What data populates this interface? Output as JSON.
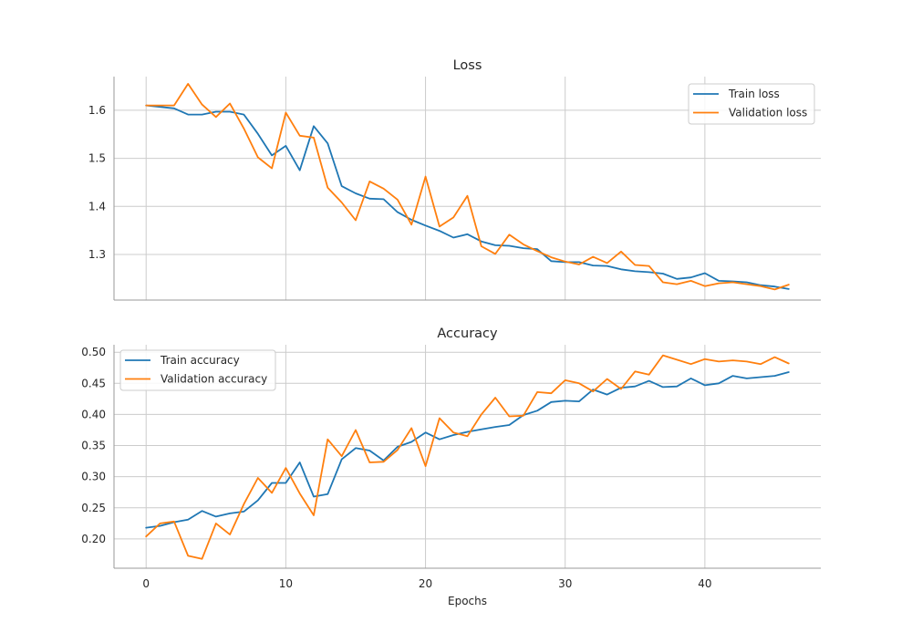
{
  "chart_data": [
    {
      "type": "line",
      "title": "Loss",
      "xlabel": "",
      "ylabel": "",
      "xlim": [
        -2.3,
        48.3
      ],
      "ylim": [
        1.205,
        1.67
      ],
      "xticks": [
        0,
        10,
        20,
        30,
        40
      ],
      "yticks": [
        1.3,
        1.4,
        1.5,
        1.6
      ],
      "ytick_labels": [
        "1.3",
        "1.4",
        "1.5",
        "1.6"
      ],
      "xtick_labels": [],
      "grid": true,
      "legend_position": "upper right",
      "x": [
        0,
        1,
        2,
        3,
        4,
        5,
        6,
        7,
        8,
        9,
        10,
        11,
        12,
        13,
        14,
        15,
        16,
        17,
        18,
        19,
        20,
        21,
        22,
        23,
        24,
        25,
        26,
        27,
        28,
        29,
        30,
        31,
        32,
        33,
        34,
        35,
        36,
        37,
        38,
        39,
        40,
        41,
        42,
        43,
        44,
        45,
        46
      ],
      "series": [
        {
          "name": "Train loss",
          "color": "#1f77b4",
          "values": [
            1.61,
            1.607,
            1.604,
            1.591,
            1.591,
            1.597,
            1.597,
            1.591,
            1.551,
            1.506,
            1.526,
            1.475,
            1.567,
            1.531,
            1.442,
            1.427,
            1.416,
            1.415,
            1.388,
            1.372,
            1.36,
            1.349,
            1.335,
            1.342,
            1.327,
            1.319,
            1.318,
            1.313,
            1.311,
            1.286,
            1.284,
            1.284,
            1.277,
            1.276,
            1.269,
            1.265,
            1.263,
            1.26,
            1.249,
            1.252,
            1.261,
            1.245,
            1.244,
            1.242,
            1.236,
            1.233,
            1.228
          ]
        },
        {
          "name": "Validation loss",
          "color": "#ff7f0e",
          "values": [
            1.61,
            1.61,
            1.61,
            1.655,
            1.612,
            1.586,
            1.614,
            1.562,
            1.502,
            1.479,
            1.595,
            1.547,
            1.543,
            1.439,
            1.408,
            1.371,
            1.452,
            1.437,
            1.414,
            1.362,
            1.462,
            1.358,
            1.377,
            1.422,
            1.317,
            1.301,
            1.341,
            1.321,
            1.307,
            1.294,
            1.285,
            1.279,
            1.295,
            1.282,
            1.306,
            1.278,
            1.276,
            1.242,
            1.238,
            1.245,
            1.234,
            1.24,
            1.242,
            1.238,
            1.234,
            1.227,
            1.237
          ]
        }
      ]
    },
    {
      "type": "line",
      "title": "Accuracy",
      "xlabel": "Epochs",
      "ylabel": "",
      "xlim": [
        -2.3,
        48.3
      ],
      "ylim": [
        0.153,
        0.512
      ],
      "xticks": [
        0,
        10,
        20,
        30,
        40
      ],
      "xtick_labels": [
        "0",
        "10",
        "20",
        "30",
        "40"
      ],
      "yticks": [
        0.2,
        0.25,
        0.3,
        0.35,
        0.4,
        0.45,
        0.5
      ],
      "ytick_labels": [
        "0.20",
        "0.25",
        "0.30",
        "0.35",
        "0.40",
        "0.45",
        "0.50"
      ],
      "grid": true,
      "legend_position": "upper left",
      "x": [
        0,
        1,
        2,
        3,
        4,
        5,
        6,
        7,
        8,
        9,
        10,
        11,
        12,
        13,
        14,
        15,
        16,
        17,
        18,
        19,
        20,
        21,
        22,
        23,
        24,
        25,
        26,
        27,
        28,
        29,
        30,
        31,
        32,
        33,
        34,
        35,
        36,
        37,
        38,
        39,
        40,
        41,
        42,
        43,
        44,
        45,
        46
      ],
      "series": [
        {
          "name": "Train accuracy",
          "color": "#1f77b4",
          "values": [
            0.218,
            0.221,
            0.227,
            0.231,
            0.245,
            0.236,
            0.241,
            0.244,
            0.262,
            0.29,
            0.29,
            0.323,
            0.268,
            0.272,
            0.328,
            0.346,
            0.342,
            0.326,
            0.348,
            0.356,
            0.371,
            0.36,
            0.367,
            0.372,
            0.376,
            0.38,
            0.383,
            0.399,
            0.406,
            0.42,
            0.422,
            0.421,
            0.44,
            0.432,
            0.443,
            0.445,
            0.454,
            0.444,
            0.445,
            0.458,
            0.447,
            0.45,
            0.462,
            0.458,
            0.46,
            0.462,
            0.468
          ]
        },
        {
          "name": "Validation accuracy",
          "color": "#ff7f0e",
          "values": [
            0.204,
            0.225,
            0.228,
            0.173,
            0.168,
            0.225,
            0.207,
            0.256,
            0.298,
            0.274,
            0.314,
            0.273,
            0.238,
            0.36,
            0.333,
            0.375,
            0.323,
            0.324,
            0.343,
            0.378,
            0.317,
            0.394,
            0.371,
            0.365,
            0.4,
            0.427,
            0.397,
            0.398,
            0.436,
            0.434,
            0.455,
            0.45,
            0.437,
            0.457,
            0.441,
            0.469,
            0.464,
            0.495,
            0.488,
            0.481,
            0.489,
            0.485,
            0.487,
            0.485,
            0.481,
            0.492,
            0.482
          ]
        }
      ]
    }
  ]
}
